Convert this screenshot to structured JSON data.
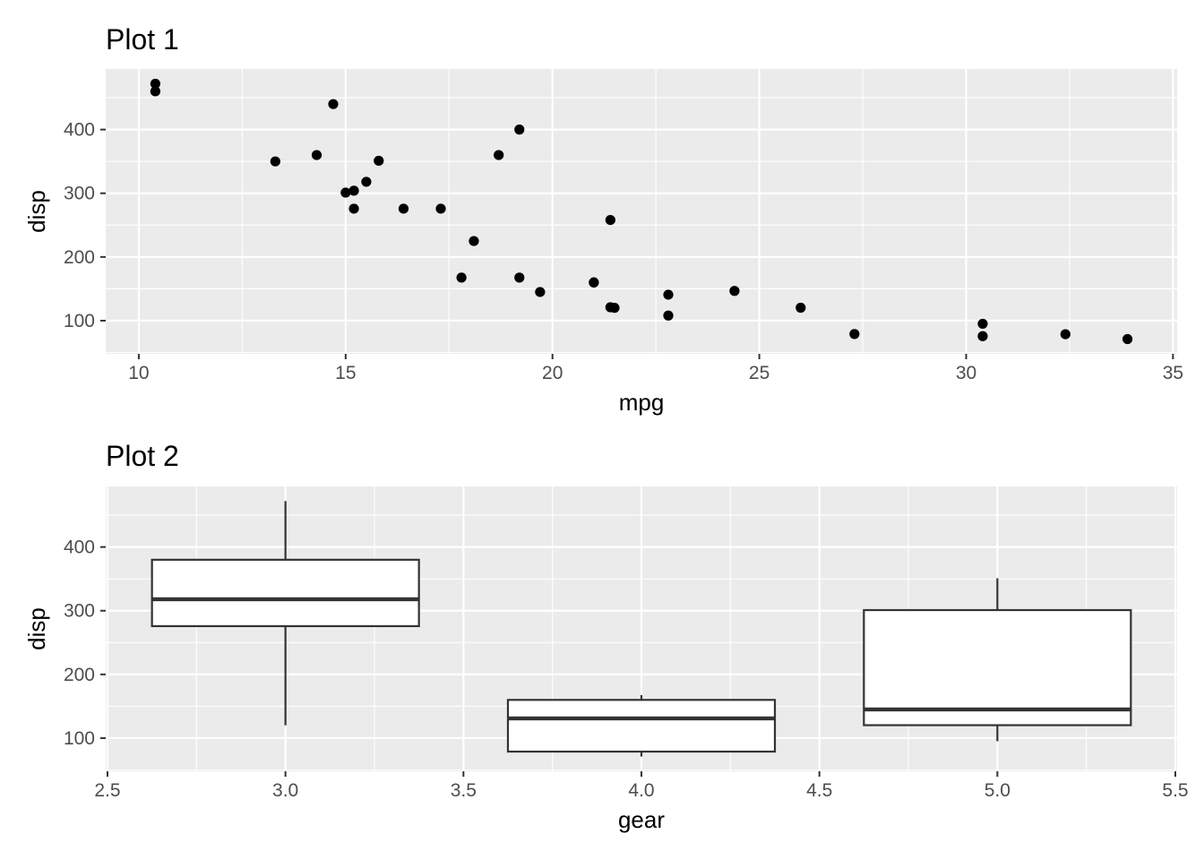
{
  "chart_data": [
    {
      "type": "scatter",
      "title": "Plot 1",
      "xlabel": "mpg",
      "ylabel": "disp",
      "xlim": [
        9.2,
        35.1
      ],
      "ylim": [
        47.9,
        495.1
      ],
      "xticks": [
        10,
        15,
        20,
        25,
        30,
        35
      ],
      "yticks": [
        100,
        200,
        300,
        400
      ],
      "grid": true,
      "colors": {
        "panel": "#ebebeb",
        "grid": "#ffffff",
        "point": "#000000"
      },
      "points": [
        {
          "x": 10.4,
          "y": 472
        },
        {
          "x": 10.4,
          "y": 460
        },
        {
          "x": 13.3,
          "y": 350
        },
        {
          "x": 14.3,
          "y": 360
        },
        {
          "x": 14.7,
          "y": 440
        },
        {
          "x": 15.0,
          "y": 301
        },
        {
          "x": 15.2,
          "y": 304
        },
        {
          "x": 15.2,
          "y": 275.8
        },
        {
          "x": 15.5,
          "y": 318
        },
        {
          "x": 15.8,
          "y": 351
        },
        {
          "x": 16.4,
          "y": 275.8
        },
        {
          "x": 17.3,
          "y": 275.8
        },
        {
          "x": 17.8,
          "y": 167.6
        },
        {
          "x": 18.1,
          "y": 225
        },
        {
          "x": 18.7,
          "y": 360
        },
        {
          "x": 19.2,
          "y": 167.6
        },
        {
          "x": 19.2,
          "y": 400
        },
        {
          "x": 19.7,
          "y": 145
        },
        {
          "x": 21.0,
          "y": 160
        },
        {
          "x": 21.0,
          "y": 160
        },
        {
          "x": 21.4,
          "y": 258
        },
        {
          "x": 21.4,
          "y": 121
        },
        {
          "x": 21.5,
          "y": 120.1
        },
        {
          "x": 22.8,
          "y": 108
        },
        {
          "x": 22.8,
          "y": 140.8
        },
        {
          "x": 24.4,
          "y": 146.7
        },
        {
          "x": 26.0,
          "y": 120.3
        },
        {
          "x": 27.3,
          "y": 79
        },
        {
          "x": 30.4,
          "y": 75.7
        },
        {
          "x": 30.4,
          "y": 95.1
        },
        {
          "x": 32.4,
          "y": 78.7
        },
        {
          "x": 33.9,
          "y": 71.1
        }
      ]
    },
    {
      "type": "box",
      "title": "Plot 2",
      "xlabel": "gear",
      "ylabel": "disp",
      "xlim": [
        2.495,
        5.505
      ],
      "ylim": [
        47.9,
        495.1
      ],
      "xticks": [
        "2.5",
        "3.0",
        "3.5",
        "4.0",
        "4.5",
        "5.0",
        "5.5"
      ],
      "yticks": [
        100,
        200,
        300,
        400
      ],
      "grid": true,
      "colors": {
        "panel": "#ebebeb",
        "grid": "#ffffff",
        "box_fill": "#ffffff",
        "box_line": "#333333"
      },
      "boxes": [
        {
          "x": 3,
          "min": 120.1,
          "q1": 275.8,
          "median": 318,
          "q3": 380,
          "max": 472
        },
        {
          "x": 4,
          "min": 71.1,
          "q1": 78.85,
          "median": 130.9,
          "q3": 160,
          "max": 167.6
        },
        {
          "x": 5,
          "min": 95.1,
          "q1": 120.3,
          "median": 145,
          "q3": 301,
          "max": 351
        }
      ]
    }
  ]
}
